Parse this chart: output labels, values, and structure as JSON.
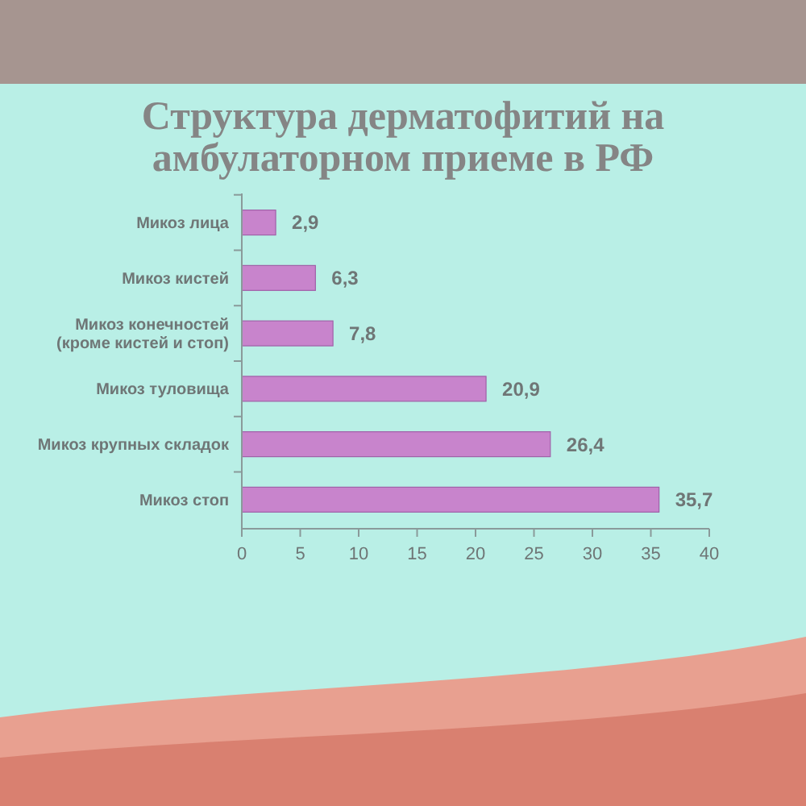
{
  "chart_data": {
    "type": "bar",
    "orientation": "horizontal",
    "title": "Структура дерматофитий на амбулаторном приеме в РФ",
    "categories": [
      "Микоз лица",
      "Микоз кистей",
      "Микоз конечностей\n(кроме кистей и стоп)",
      "Микоз туловища",
      "Микоз крупных складок",
      "Микоз стоп"
    ],
    "values": [
      2.9,
      6.3,
      7.8,
      20.9,
      26.4,
      35.7
    ],
    "value_labels": [
      "2,9",
      "6,3",
      "7,8",
      "20,9",
      "26,4",
      "35,7"
    ],
    "color": "#c884cc",
    "xlim": [
      0,
      40
    ],
    "xticks": [
      0,
      5,
      10,
      15,
      20,
      25,
      30,
      35,
      40
    ]
  }
}
